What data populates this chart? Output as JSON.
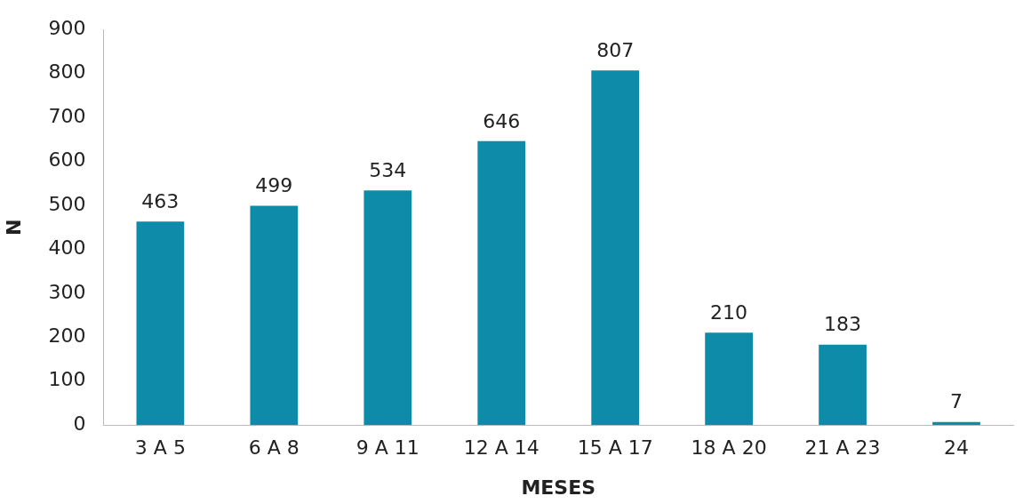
{
  "chart_data": {
    "type": "bar",
    "xlabel": "MESES",
    "ylabel": "N",
    "categories": [
      "3 A 5",
      "6 A 8",
      "9 A 11",
      "12 A 14",
      "15 A 17",
      "18 A 20",
      "21 A 23",
      "24"
    ],
    "values": [
      463,
      499,
      534,
      646,
      807,
      210,
      183,
      7
    ],
    "color": "#0e8ba8",
    "ylim": [
      0,
      900
    ],
    "yticks": [
      0,
      100,
      200,
      300,
      400,
      500,
      600,
      700,
      800,
      900
    ],
    "grid": false,
    "data_labels": true,
    "legend": false
  }
}
